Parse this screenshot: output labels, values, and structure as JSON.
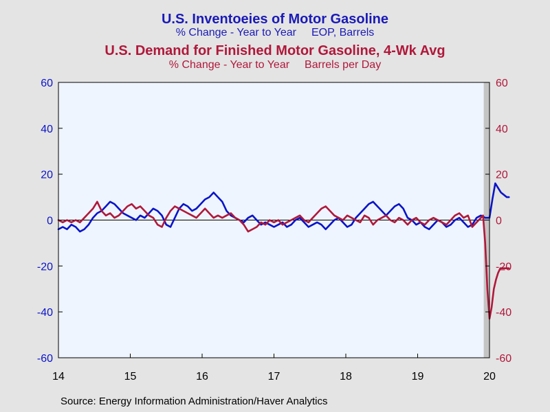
{
  "titles": {
    "title1": "U.S. Inventoeies of Motor Gasoline",
    "subtitle1_left": "% Change - Year to Year",
    "subtitle1_right": "EOP,  Barrels",
    "title2": "U.S. Demand for Finished Motor Gasoline, 4-Wk Avg",
    "subtitle2_left": "% Change - Year to Year",
    "subtitle2_right": "Barrels per Day"
  },
  "source": "Source:  Energy Information Administration/Haver Analytics",
  "colors": {
    "inventories": "#0a14c8",
    "demand": "#b0183a",
    "plot_bg": "#eef5fe",
    "recession_shade": "#c4c4c4",
    "page_bg": "#e4e4e4"
  },
  "chart_data": {
    "type": "line",
    "xlim": [
      2014,
      2020
    ],
    "ylim": [
      -60,
      60
    ],
    "x_ticks": [
      "14",
      "15",
      "16",
      "17",
      "18",
      "19",
      "20"
    ],
    "y_ticks_left": [
      "60",
      "40",
      "20",
      "0",
      "-20",
      "-40",
      "-60"
    ],
    "y_ticks_right": [
      "60",
      "40",
      "20",
      "0",
      "-20",
      "-40",
      "-60"
    ],
    "shaded_region": [
      2019.92,
      2020.27
    ],
    "grid": false,
    "series": [
      {
        "key": "inventories",
        "x": [
          2014.0,
          2014.06,
          2014.12,
          2014.18,
          2014.24,
          2014.3,
          2014.36,
          2014.42,
          2014.48,
          2014.54,
          2014.6,
          2014.66,
          2014.72,
          2014.78,
          2014.84,
          2014.9,
          2014.96,
          2015.02,
          2015.08,
          2015.14,
          2015.2,
          2015.26,
          2015.32,
          2015.38,
          2015.44,
          2015.5,
          2015.56,
          2015.62,
          2015.68,
          2015.74,
          2015.8,
          2015.86,
          2015.92,
          2015.98,
          2016.04,
          2016.1,
          2016.16,
          2016.22,
          2016.28,
          2016.34,
          2016.4,
          2016.46,
          2016.52,
          2016.58,
          2016.64,
          2016.7,
          2016.76,
          2016.82,
          2016.88,
          2016.94,
          2017.0,
          2017.06,
          2017.12,
          2017.18,
          2017.24,
          2017.3,
          2017.36,
          2017.42,
          2017.48,
          2017.54,
          2017.6,
          2017.66,
          2017.72,
          2017.78,
          2017.84,
          2017.9,
          2017.96,
          2018.02,
          2018.08,
          2018.14,
          2018.2,
          2018.26,
          2018.32,
          2018.38,
          2018.44,
          2018.5,
          2018.56,
          2018.62,
          2018.68,
          2018.74,
          2018.8,
          2018.86,
          2018.92,
          2018.98,
          2019.04,
          2019.1,
          2019.16,
          2019.22,
          2019.28,
          2019.34,
          2019.4,
          2019.46,
          2019.52,
          2019.58,
          2019.64,
          2019.7,
          2019.76,
          2019.82,
          2019.88,
          2019.94,
          2020.0,
          2020.04,
          2020.08,
          2020.12,
          2020.16,
          2020.2,
          2020.24,
          2020.27
        ],
        "y": [
          -4,
          -3,
          -4,
          -2,
          -3,
          -5,
          -4,
          -2,
          1,
          3,
          4,
          6,
          8,
          7,
          5,
          3,
          2,
          1,
          0,
          2,
          1,
          3,
          5,
          4,
          2,
          -2,
          -3,
          1,
          5,
          7,
          6,
          4,
          5,
          7,
          9,
          10,
          12,
          10,
          8,
          4,
          2,
          1,
          0,
          -1,
          1,
          2,
          0,
          -2,
          -1,
          -2,
          -3,
          -2,
          -1,
          -3,
          -2,
          0,
          1,
          -1,
          -3,
          -2,
          -1,
          -2,
          -4,
          -2,
          0,
          1,
          -1,
          -3,
          -2,
          1,
          3,
          5,
          7,
          8,
          6,
          4,
          2,
          4,
          6,
          7,
          5,
          1,
          0,
          -2,
          -1,
          -3,
          -4,
          -2,
          0,
          -1,
          -3,
          -2,
          0,
          1,
          -1,
          -3,
          -2,
          1,
          2,
          1,
          1,
          9,
          16,
          14,
          12,
          11,
          10,
          10
        ]
      },
      {
        "key": "demand",
        "x": [
          2014.0,
          2014.06,
          2014.12,
          2014.18,
          2014.24,
          2014.3,
          2014.36,
          2014.42,
          2014.48,
          2014.54,
          2014.6,
          2014.66,
          2014.72,
          2014.78,
          2014.84,
          2014.9,
          2014.96,
          2015.02,
          2015.08,
          2015.14,
          2015.2,
          2015.26,
          2015.32,
          2015.38,
          2015.44,
          2015.5,
          2015.56,
          2015.62,
          2015.68,
          2015.74,
          2015.8,
          2015.86,
          2015.92,
          2015.98,
          2016.04,
          2016.1,
          2016.16,
          2016.22,
          2016.28,
          2016.34,
          2016.4,
          2016.46,
          2016.52,
          2016.58,
          2016.64,
          2016.7,
          2016.76,
          2016.82,
          2016.88,
          2016.94,
          2017.0,
          2017.06,
          2017.12,
          2017.18,
          2017.24,
          2017.3,
          2017.36,
          2017.42,
          2017.48,
          2017.54,
          2017.6,
          2017.66,
          2017.72,
          2017.78,
          2017.84,
          2017.9,
          2017.96,
          2018.02,
          2018.08,
          2018.14,
          2018.2,
          2018.26,
          2018.32,
          2018.38,
          2018.44,
          2018.5,
          2018.56,
          2018.62,
          2018.68,
          2018.74,
          2018.8,
          2018.86,
          2018.92,
          2018.98,
          2019.04,
          2019.1,
          2019.16,
          2019.22,
          2019.28,
          2019.34,
          2019.4,
          2019.46,
          2019.52,
          2019.58,
          2019.64,
          2019.7,
          2019.76,
          2019.82,
          2019.88,
          2019.91,
          2019.94,
          2019.97,
          2020.0,
          2020.03,
          2020.06,
          2020.09,
          2020.12,
          2020.15,
          2020.18,
          2020.21,
          2020.24,
          2020.27
        ],
        "y": [
          0,
          -1,
          0,
          -1,
          0,
          -1,
          1,
          3,
          5,
          8,
          4,
          2,
          3,
          1,
          2,
          4,
          6,
          7,
          5,
          6,
          4,
          2,
          1,
          -2,
          -3,
          1,
          4,
          6,
          5,
          4,
          3,
          2,
          1,
          3,
          5,
          3,
          1,
          2,
          1,
          2,
          3,
          1,
          0,
          -2,
          -5,
          -4,
          -3,
          -1,
          -2,
          0,
          -1,
          0,
          -2,
          -1,
          0,
          1,
          2,
          0,
          -1,
          1,
          3,
          5,
          6,
          4,
          2,
          1,
          0,
          2,
          1,
          0,
          -1,
          2,
          1,
          -2,
          0,
          1,
          2,
          0,
          -1,
          1,
          0,
          -2,
          0,
          1,
          -1,
          -2,
          0,
          1,
          0,
          -1,
          -2,
          0,
          2,
          3,
          1,
          2,
          -3,
          -1,
          1,
          2,
          -10,
          -30,
          -43,
          -38,
          -30,
          -26,
          -23,
          -21,
          -21,
          -21,
          -21,
          -21
        ]
      }
    ]
  }
}
